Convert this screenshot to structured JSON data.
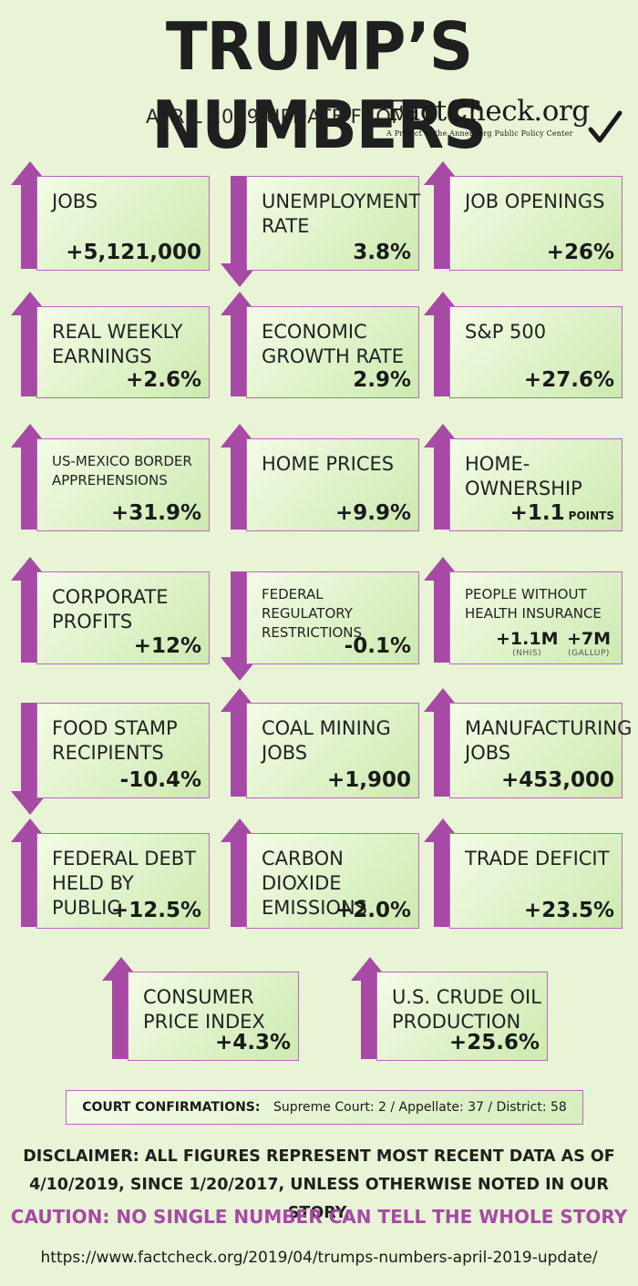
{
  "title": "TRUMP’S NUMBERS",
  "subtitle": "APRIL 2019 UPDATE FROM",
  "logo": {
    "text": "FactCheck.org",
    "tagline": "A Project of the Annenberg Public Policy Center"
  },
  "colors": {
    "background": "#e9f3d6",
    "arrow": "#a64aa6",
    "card_border": "#b56cb5"
  },
  "metrics": [
    {
      "label": "JOBS",
      "value": "+5,121,000",
      "direction": "up"
    },
    {
      "label": "UNEMPLOYMENT RATE",
      "value": "3.8%",
      "direction": "down"
    },
    {
      "label": "JOB OPENINGS",
      "value": "+26%",
      "direction": "up"
    },
    {
      "label": "REAL WEEKLY EARNINGS",
      "value": "+2.6%",
      "direction": "up"
    },
    {
      "label": "ECONOMIC GROWTH RATE",
      "value": "2.9%",
      "direction": "up"
    },
    {
      "label": "S&P 500",
      "value": "+27.6%",
      "direction": "up"
    },
    {
      "label": "US-MEXICO BORDER APPREHENSIONS",
      "value": "+31.9%",
      "direction": "up"
    },
    {
      "label": "HOME PRICES",
      "value": "+9.9%",
      "direction": "up"
    },
    {
      "label": "HOME-OWNERSHIP",
      "value": "+1.1",
      "unit": "POINTS",
      "direction": "up"
    },
    {
      "label": "CORPORATE PROFITS",
      "value": "+12%",
      "direction": "up"
    },
    {
      "label": "FEDERAL REGULATORY RESTRICTIONS",
      "value": "-0.1%",
      "direction": "down"
    },
    {
      "label": "PEOPLE WITHOUT HEALTH INSURANCE",
      "direction": "up",
      "values": [
        {
          "value": "+1.1M",
          "source": "(NHIS)"
        },
        {
          "value": "+7M",
          "source": "(GALLUP)"
        }
      ]
    },
    {
      "label": "FOOD STAMP RECIPIENTS",
      "value": "-10.4%",
      "direction": "down"
    },
    {
      "label": "COAL MINING JOBS",
      "value": "+1,900",
      "direction": "up"
    },
    {
      "label": "MANUFACTURING JOBS",
      "value": "+453,000",
      "direction": "up"
    },
    {
      "label": "FEDERAL DEBT HELD BY PUBLIC",
      "value": "+12.5%",
      "direction": "up"
    },
    {
      "label": "CARBON DIOXIDE EMISSIONS",
      "value": "+2.0%",
      "direction": "up"
    },
    {
      "label": "TRADE DEFICIT",
      "value": "+23.5%",
      "direction": "up"
    },
    {
      "label": "CONSUMER PRICE INDEX",
      "value": "+4.3%",
      "direction": "up"
    },
    {
      "label": "U.S. CRUDE OIL PRODUCTION",
      "value": "+25.6%",
      "direction": "up"
    }
  ],
  "court": {
    "heading": "COURT CONFIRMATIONS:",
    "text": "Supreme Court: 2 / Appellate: 37 / District: 58"
  },
  "disclaimer": "DISCLAIMER:  ALL FIGURES REPRESENT MOST RECENT DATA AS OF 4/10/2019, SINCE 1/20/2017, UNLESS OTHERWISE NOTED IN OUR STORY.",
  "caution": "CAUTION: NO SINGLE NUMBER CAN TELL THE WHOLE STORY",
  "url": "https://www.factcheck.org/2019/04/trumps-numbers-april-2019-update/"
}
